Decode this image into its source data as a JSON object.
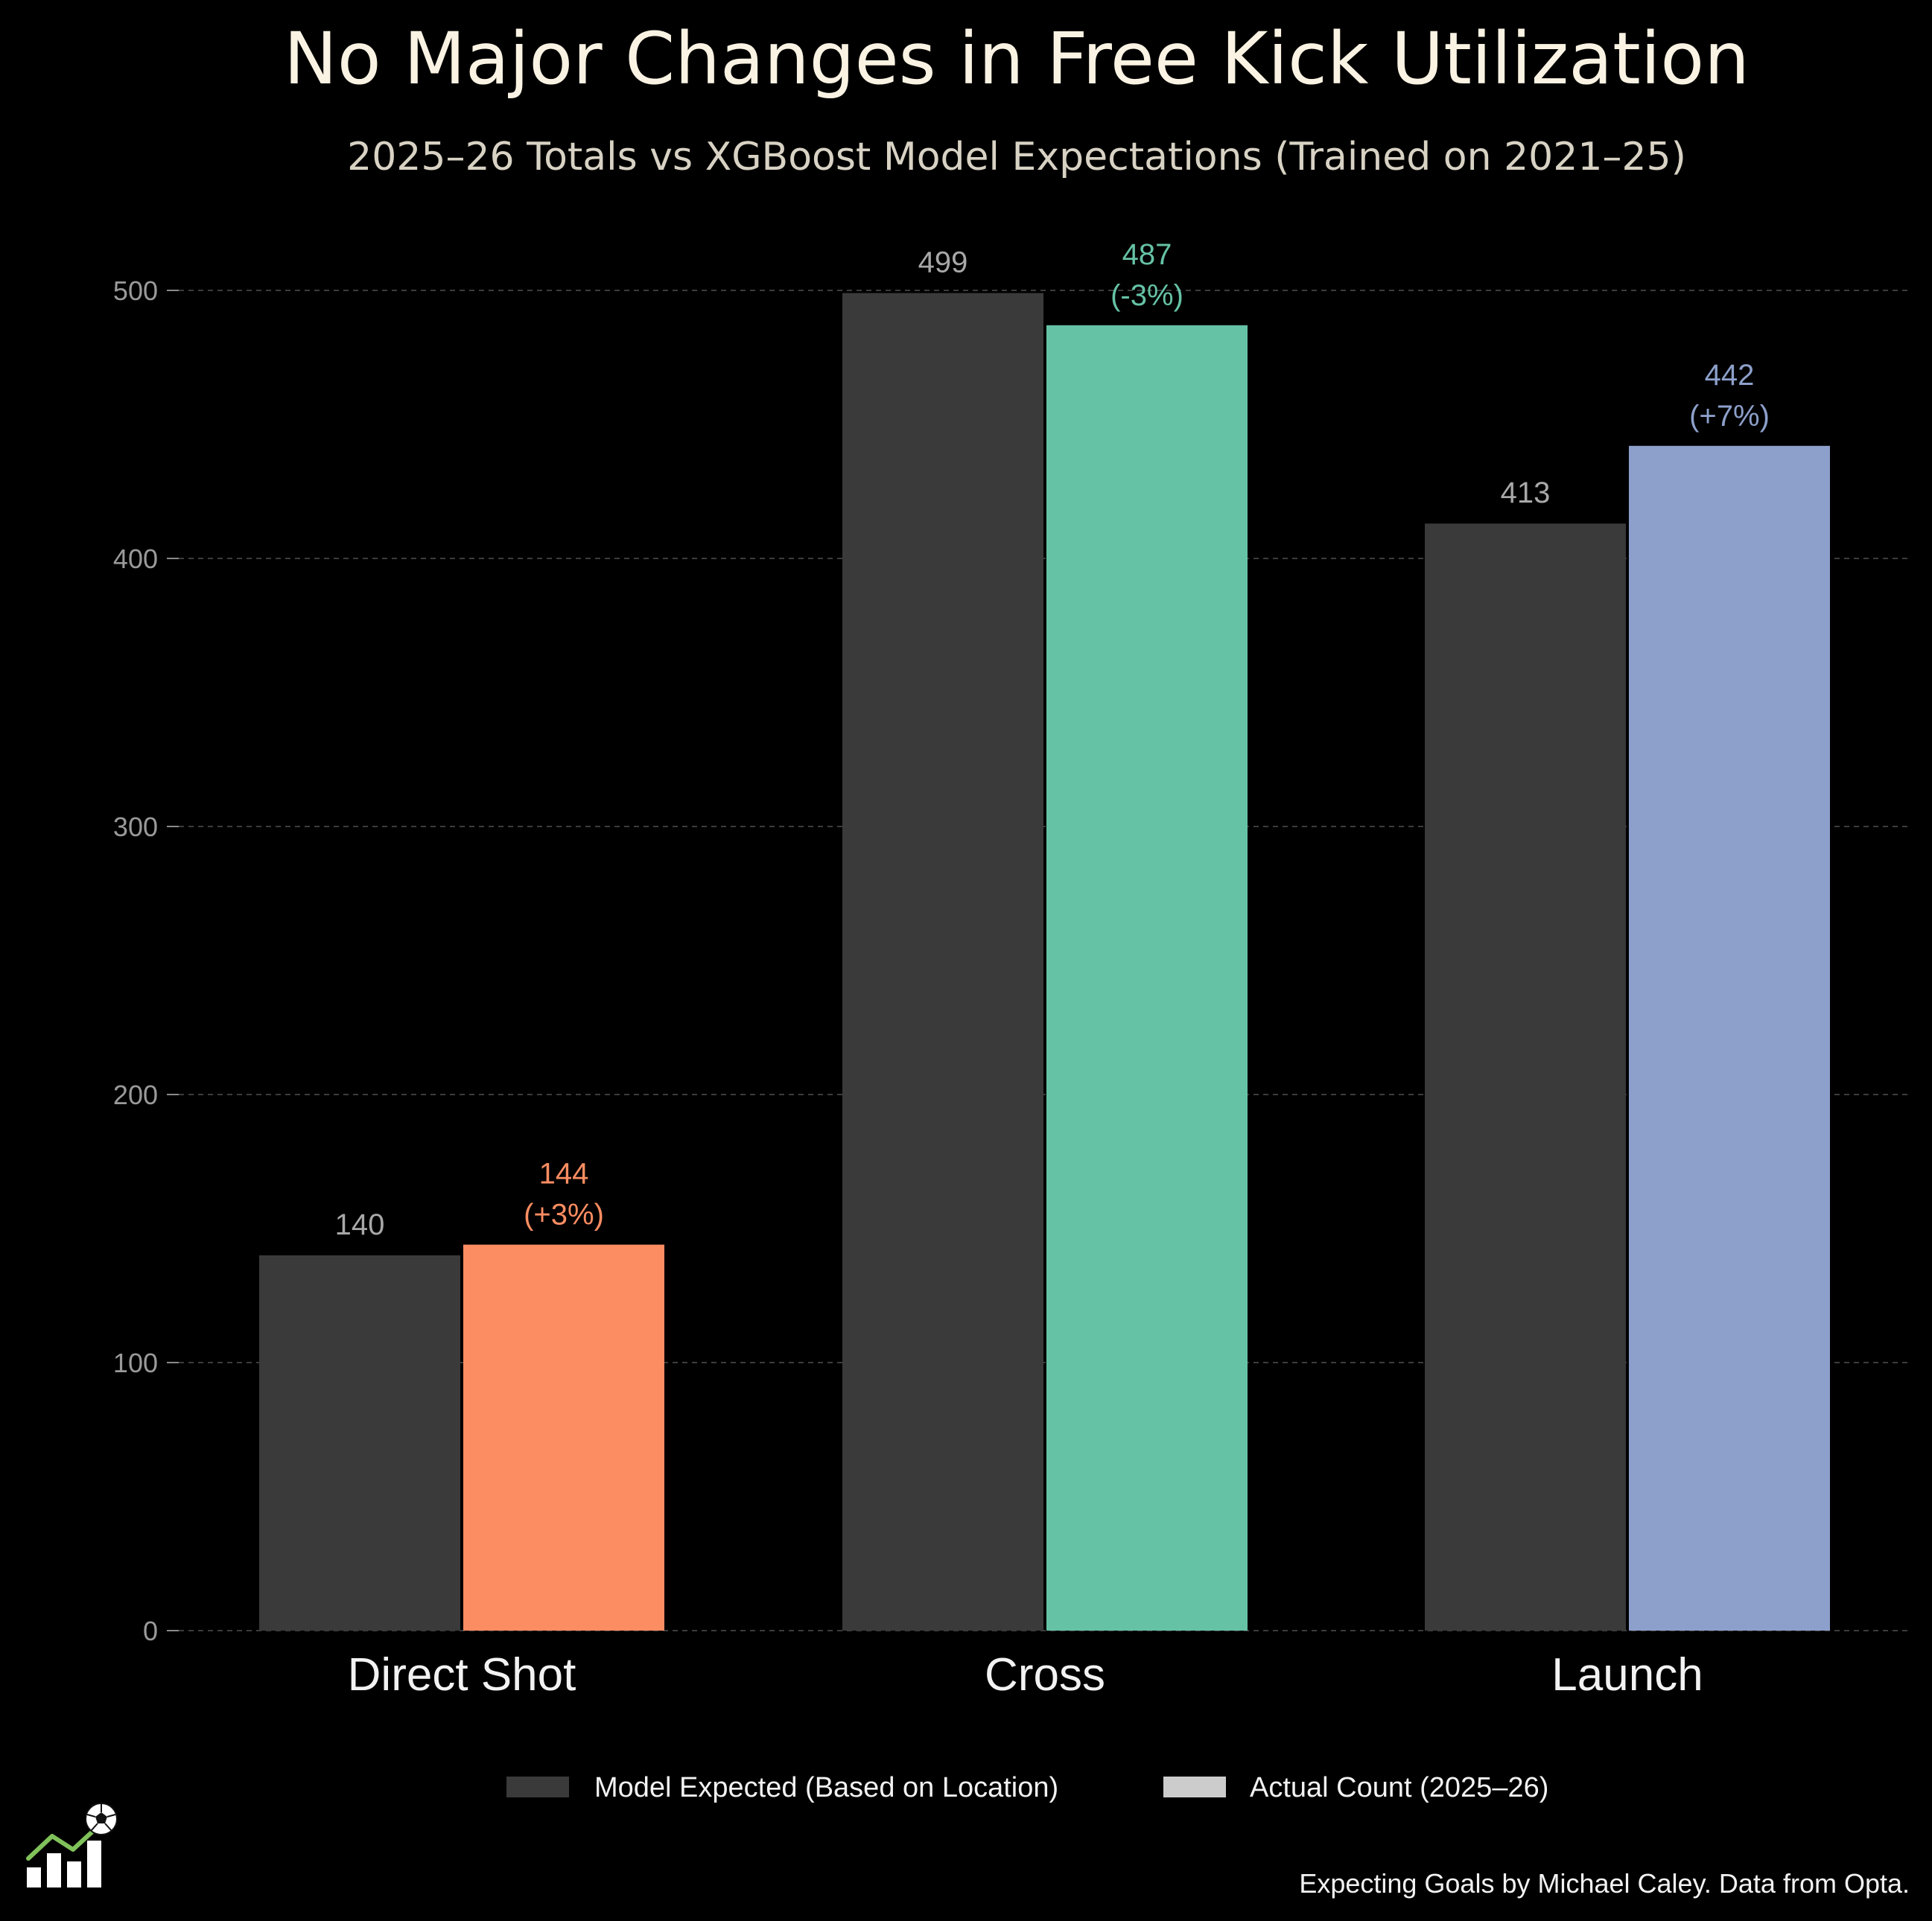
{
  "chart_data": {
    "type": "bar",
    "title": "No Major Changes in Free Kick Utilization",
    "subtitle": "2025–26 Totals vs XGBoost Model Expectations (Trained on 2021–25)",
    "categories": [
      "Direct Shot",
      "Cross",
      "Launch"
    ],
    "series": [
      {
        "name": "Model Expected (Based on Location)",
        "values": [
          140,
          499,
          413
        ],
        "labels": [
          "140",
          "499",
          "413"
        ],
        "color": "#3a3a3a",
        "label_color": "#a8a8a8"
      },
      {
        "name": "Actual Count (2025–26)",
        "values": [
          144,
          487,
          442
        ],
        "labels": [
          "144",
          "487",
          "442"
        ],
        "pct_labels": [
          "(+3%)",
          "(-3%)",
          "(+7%)"
        ],
        "colors": [
          "#fc8d62",
          "#66c2a5",
          "#8da0cb"
        ],
        "legend_color": "#cccccc"
      }
    ],
    "y_ticks": [
      0,
      100,
      200,
      300,
      400,
      500
    ],
    "y_tick_labels": [
      "0",
      "100",
      "200",
      "300",
      "400",
      "500"
    ],
    "ylim": [
      0,
      520
    ],
    "grid": true,
    "legend_position": "bottom-center",
    "xlabel": "",
    "ylabel": ""
  },
  "footer": {
    "credit": "Expecting Goals by Michael Caley. Data from Opta."
  },
  "logo": {
    "icon": "bar-chart-trend-soccer-ball-icon"
  }
}
